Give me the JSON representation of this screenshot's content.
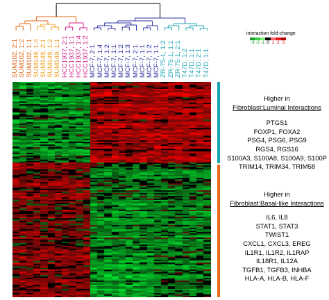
{
  "column_labels": [
    {
      "text": "SUM102, 2:1",
      "color": "#e06a1a"
    },
    {
      "text": "SUM102, 1:2",
      "color": "#e06a1a"
    },
    {
      "text": "SUM102, 1:1",
      "color": "#e06a1a"
    },
    {
      "text": "SUM149, 1:4",
      "color": "#f0a020"
    },
    {
      "text": "SUM149, 2:1",
      "color": "#f0a020"
    },
    {
      "text": "SUM149, 1:2",
      "color": "#f0a020"
    },
    {
      "text": "SUM149, 1:1",
      "color": "#f0a020"
    },
    {
      "text": "HCC1937, 2:1",
      "color": "#d01f8a"
    },
    {
      "text": "HCC1937, 1:1",
      "color": "#d01f8a"
    },
    {
      "text": "HCC1937, 1:4",
      "color": "#d01f8a"
    },
    {
      "text": "HCC1937, 1:2",
      "color": "#d01f8a"
    },
    {
      "text": "MCF-7, 2:1",
      "color": "#2b2fa0"
    },
    {
      "text": "MCF-7, 1:4",
      "color": "#2b2fa0"
    },
    {
      "text": "MCF-7, 1:2",
      "color": "#2b2fa0"
    },
    {
      "text": "MCF-7, 1:1",
      "color": "#2b2fa0"
    },
    {
      "text": "MCF-7, 1:2",
      "color": "#2b2fa0"
    },
    {
      "text": "MCF-7, 1:3",
      "color": "#2b2fa0"
    },
    {
      "text": "MCF-7, 2:1",
      "color": "#2b2fa0"
    },
    {
      "text": "MCF-7, 1:1",
      "color": "#2b2fa0"
    },
    {
      "text": "MCF-7, 1:2",
      "color": "#2b2fa0"
    },
    {
      "text": "MCF-7, 1:1",
      "color": "#2b2fa0"
    },
    {
      "text": "ZR-75-1, 1:2",
      "color": "#22a7b5"
    },
    {
      "text": "ZR-75-1, 1:1",
      "color": "#22a7b5"
    },
    {
      "text": "ZR-75-1, 2:1",
      "color": "#22a7b5"
    },
    {
      "text": "T47D, 1:2",
      "color": "#22a7b5"
    },
    {
      "text": "T47D, 1:1",
      "color": "#22a7b5"
    },
    {
      "text": "T47D, 2:1",
      "color": "#22a7b5"
    },
    {
      "text": "T47D, 1:1",
      "color": "#22a7b5"
    }
  ],
  "dendrogram_colors": {
    "root": "#000000",
    "sum102": "#e06a1a",
    "sum149": "#f0a020",
    "hcc1937": "#d01f8a",
    "mcf7": "#2b2fa0",
    "zr_t47d": "#22a7b5"
  },
  "color_scale": {
    "title": "interaction fold-change",
    "ticks": [
      "-3",
      "-2",
      "-1",
      "0",
      "1",
      "2",
      "3"
    ],
    "colors": [
      "#1e9a32",
      "#3acf4a",
      "#7ef07a",
      "#000000",
      "#ff6a6a",
      "#e81c1c",
      "#b00000"
    ]
  },
  "luminal": {
    "bar_color": "#1aa3b0",
    "heading_line1": "Higher in",
    "heading_line2": "Fibroblast:Luminal Interactions",
    "genes": [
      "PTGS1",
      "FOXP1, FOXA2",
      "PSG4, PSG6, PSG9",
      "RGS4, RGS16",
      "S100A3, S100A8, S100A9, S100P",
      "TRIM14, TRIM34, TRIM58"
    ]
  },
  "basal": {
    "bar_color": "#e46a1e",
    "heading_line1": "Higher in",
    "heading_line2": "Fibroblast:Basal-like Interactions",
    "genes": [
      "IL6, IL8",
      "STAT1, STAT3",
      "TWIST1",
      "CXCL1, CXCL3, EREG",
      "IL1R1, IL1R2, IL1RAP",
      "IL18R1, IL12A",
      "TGFB1, TGFB3, INHBA",
      "HLA-A, HLA-B, HLA-F"
    ]
  }
}
